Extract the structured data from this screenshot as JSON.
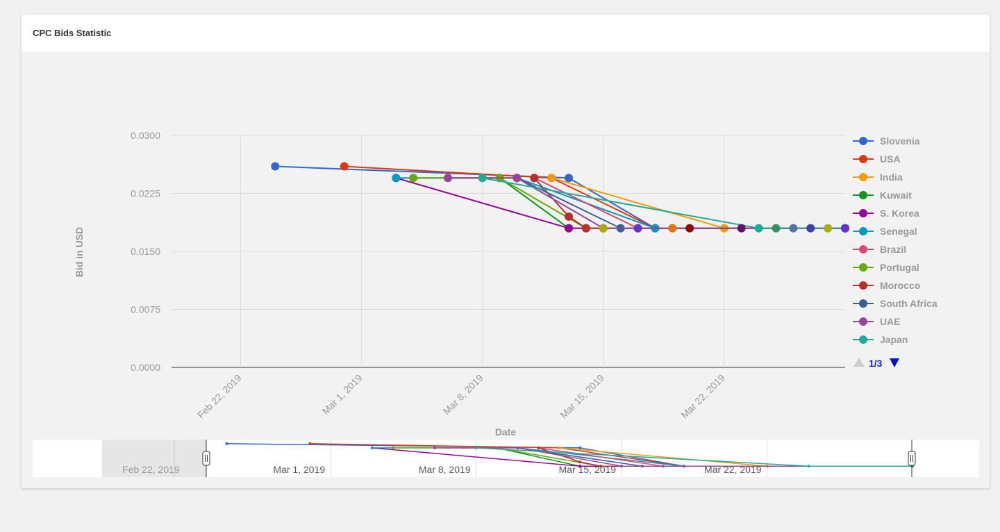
{
  "header": {
    "title": "CPC Bids Statistic"
  },
  "chart_data": {
    "type": "line",
    "title": "",
    "xlabel": "Date",
    "ylabel": "Bid in USD",
    "ylim": [
      0,
      0.03
    ],
    "y_ticks": [
      "0.0300",
      "0.0225",
      "0.0150",
      "0.0075",
      "0.0000"
    ],
    "x_ticks": [
      "Feb 22, 2019",
      "Mar 1, 2019",
      "Mar 8, 2019",
      "Mar 15, 2019",
      "Mar 22, 2019"
    ],
    "xlim": [
      "2019-02-18",
      "2019-03-29"
    ],
    "grid": true,
    "legend_position": "right",
    "legend_page": "1/3",
    "series": [
      {
        "name": "Slovenia",
        "color": "#3366cc",
        "points": [
          [
            "2019-02-24",
            0.026
          ],
          [
            "2019-03-13",
            0.0245
          ],
          [
            "2019-03-18",
            0.018
          ],
          [
            "2019-03-29",
            0.018
          ]
        ]
      },
      {
        "name": "USA",
        "color": "#dc3912",
        "points": [
          [
            "2019-02-28",
            0.026
          ],
          [
            "2019-03-12",
            0.0245
          ],
          [
            "2019-03-18",
            0.018
          ],
          [
            "2019-03-29",
            0.018
          ]
        ]
      },
      {
        "name": "India",
        "color": "#ff9900",
        "points": [
          [
            "2019-03-12",
            0.0245
          ],
          [
            "2019-03-22",
            0.018
          ],
          [
            "2019-03-29",
            0.018
          ]
        ]
      },
      {
        "name": "Kuwait",
        "color": "#109618",
        "points": [
          [
            "2019-03-09",
            0.0245
          ],
          [
            "2019-03-13",
            0.018
          ],
          [
            "2019-03-29",
            0.018
          ]
        ]
      },
      {
        "name": "S. Korea",
        "color": "#990099",
        "points": [
          [
            "2019-03-03",
            0.0245
          ],
          [
            "2019-03-13",
            0.018
          ],
          [
            "2019-03-29",
            0.018
          ]
        ]
      },
      {
        "name": "Senegal",
        "color": "#0099c6",
        "points": [
          [
            "2019-03-03",
            0.0245
          ],
          [
            "2019-03-10",
            0.0245
          ],
          [
            "2019-03-18",
            0.018
          ],
          [
            "2019-03-29",
            0.018
          ]
        ]
      },
      {
        "name": "Brazil",
        "color": "#dd4477",
        "points": [
          [
            "2019-03-11",
            0.0245
          ],
          [
            "2019-03-17",
            0.018
          ],
          [
            "2019-03-29",
            0.018
          ]
        ]
      },
      {
        "name": "Portugal",
        "color": "#66aa00",
        "points": [
          [
            "2019-03-04",
            0.0245
          ],
          [
            "2019-03-09",
            0.0245
          ],
          [
            "2019-03-14",
            0.018
          ],
          [
            "2019-03-29",
            0.018
          ]
        ]
      },
      {
        "name": "Morocco",
        "color": "#b82e2e",
        "points": [
          [
            "2019-03-11",
            0.0245
          ],
          [
            "2019-03-13",
            0.0195
          ],
          [
            "2019-03-14",
            0.018
          ],
          [
            "2019-03-29",
            0.018
          ]
        ]
      },
      {
        "name": "South Africa",
        "color": "#316395",
        "points": [
          [
            "2019-03-10",
            0.0245
          ],
          [
            "2019-03-16",
            0.018
          ],
          [
            "2019-03-29",
            0.018
          ]
        ]
      },
      {
        "name": "UAE",
        "color": "#994499",
        "points": [
          [
            "2019-03-06",
            0.0245
          ],
          [
            "2019-03-10",
            0.0245
          ],
          [
            "2019-03-15",
            0.018
          ],
          [
            "2019-03-29",
            0.018
          ]
        ]
      },
      {
        "name": "Japan",
        "color": "#22aa99",
        "points": [
          [
            "2019-03-08",
            0.0245
          ],
          [
            "2019-03-24",
            0.018
          ],
          [
            "2019-03-29",
            0.018
          ]
        ]
      }
    ],
    "extra_series_colors": [
      "#aaaa11",
      "#6633cc",
      "#e67300",
      "#8b0707",
      "#651067",
      "#329262",
      "#5574a6",
      "#3b3eac"
    ],
    "navigator": {
      "x_ticks": [
        "Feb 22, 2019",
        "Mar 1, 2019",
        "Mar 8, 2019",
        "Mar 15, 2019",
        "Mar 22, 2019"
      ]
    }
  }
}
